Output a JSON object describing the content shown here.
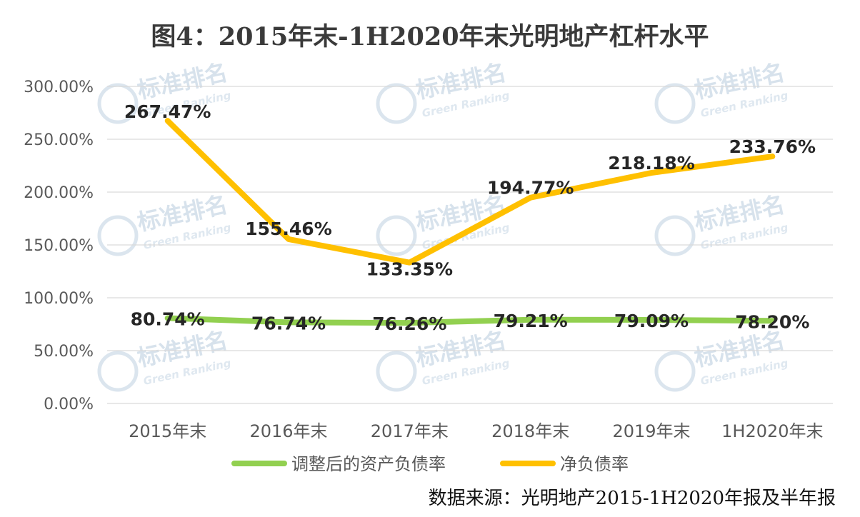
{
  "title": "图4：2015年末-1H2020年末光明地产杠杆水平",
  "source_note": "数据来源：光明地产2015-1H2020年报及半年报",
  "watermark": {
    "main": "标准排名",
    "sub": "Green Ranking"
  },
  "chart_data": {
    "type": "line",
    "categories": [
      "2015年末",
      "2016年末",
      "2017年末",
      "2018年末",
      "2019年末",
      "1H2020年末"
    ],
    "y_ticks": [
      "0.00%",
      "50.00%",
      "100.00%",
      "150.00%",
      "200.00%",
      "250.00%",
      "300.00%"
    ],
    "ylim": [
      0,
      300
    ],
    "grid": true,
    "legend_position": "bottom",
    "series": [
      {
        "name": "调整后的资产负债率",
        "color": "#92d050",
        "values": [
          80.74,
          76.74,
          76.26,
          79.21,
          79.09,
          78.2
        ],
        "labels": [
          "80.74%",
          "76.74%",
          "76.26%",
          "79.21%",
          "79.09%",
          "78.20%"
        ]
      },
      {
        "name": "净负债率",
        "color": "#ffc000",
        "values": [
          267.47,
          155.46,
          133.35,
          194.77,
          218.18,
          233.76
        ],
        "labels": [
          "267.47%",
          "155.46%",
          "133.35%",
          "194.77%",
          "218.18%",
          "233.76%"
        ]
      }
    ]
  }
}
